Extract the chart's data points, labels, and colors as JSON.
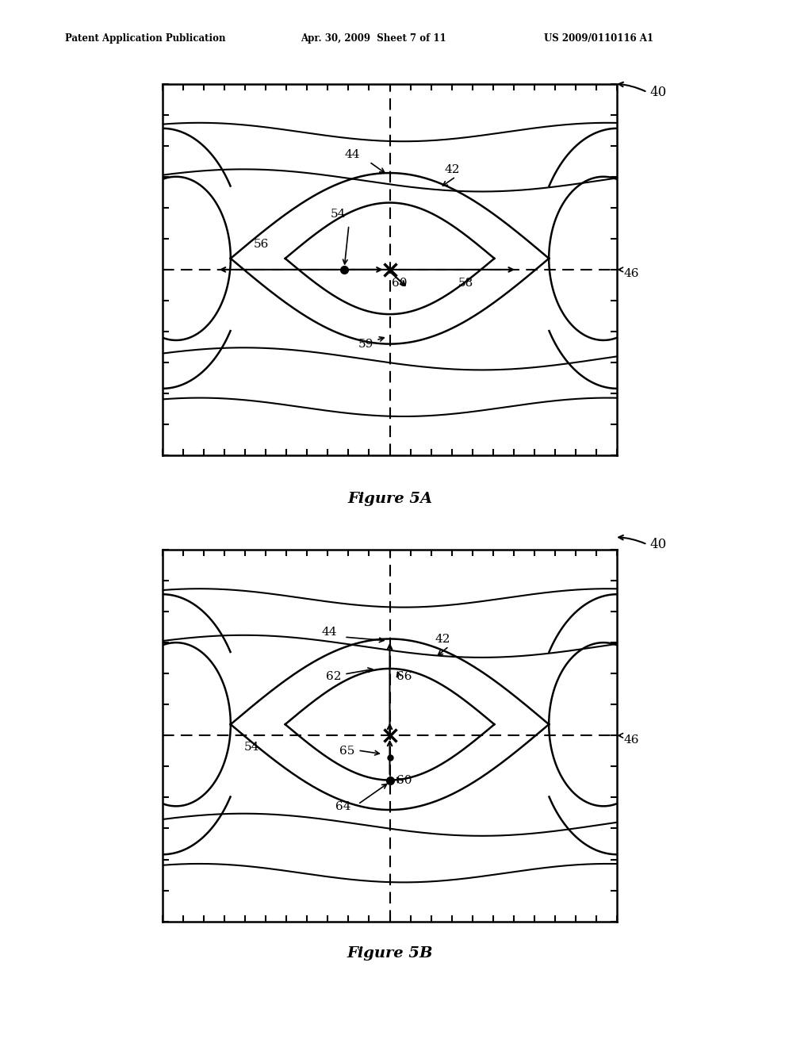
{
  "fig_width": 10.24,
  "fig_height": 13.2,
  "bg_color": "#ffffff",
  "header_left": "Patent Application Publication",
  "header_mid": "Apr. 30, 2009  Sheet 7 of 11",
  "header_right": "US 2009/0110116 A1",
  "fig5A_title": "Figure 5A",
  "fig5B_title": "Figure 5B",
  "line_color": "#000000"
}
